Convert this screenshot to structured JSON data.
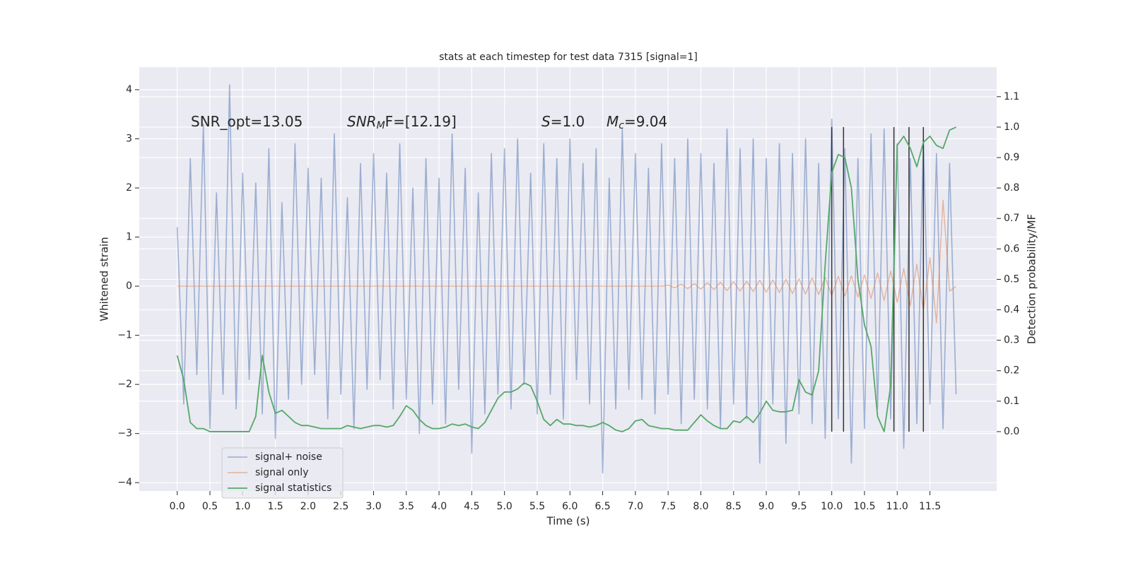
{
  "chart_data": {
    "type": "line",
    "title": "stats at each timestep for test data 7315 [signal=1]",
    "xlabel": "Time (s)",
    "ylabel": "Whitened strain",
    "y2label": "Detection probability/MF",
    "grid": true,
    "legend": "lower left",
    "xlim": [
      -0.58,
      12.52
    ],
    "ylim": [
      -4.17,
      4.46
    ],
    "y2lim": [
      -0.195,
      1.197
    ],
    "xticks": [
      {
        "value": 0,
        "label": "0.0"
      },
      0.5,
      {
        "value": 1,
        "label": "1.0"
      },
      1.5,
      {
        "value": 2,
        "label": "2.0"
      },
      2.5,
      {
        "value": 3,
        "label": "3.0"
      },
      3.5,
      {
        "value": 4,
        "label": "4.0"
      },
      4.5,
      {
        "value": 5,
        "label": "5.0"
      },
      5.5,
      {
        "value": 6,
        "label": "6.0"
      },
      6.5,
      {
        "value": 7,
        "label": "7.0"
      },
      7.5,
      {
        "value": 8,
        "label": "8.0"
      },
      8.5,
      {
        "value": 9,
        "label": "9.0"
      },
      9.5,
      {
        "value": 10,
        "label": "10.0"
      },
      10.5,
      {
        "value": 11,
        "label": "11.0"
      },
      11.5
    ],
    "yticks": [
      {
        "value": -4,
        "label": "−4"
      },
      {
        "value": -3,
        "label": "−3"
      },
      {
        "value": -2,
        "label": "−2"
      },
      {
        "value": -1,
        "label": "−1"
      },
      0,
      1,
      2,
      3,
      4
    ],
    "y2ticks": [
      {
        "value": 0,
        "label": "0.0"
      },
      0.1,
      0.2,
      0.3,
      0.4,
      0.5,
      0.6,
      0.7,
      0.8,
      0.9,
      {
        "value": 1,
        "label": "1.0"
      },
      1.1
    ],
    "annotations": [
      {
        "base": "SNR_opt=13.05",
        "italic": false
      },
      {
        "base": "SNR",
        "sub": "M",
        "rest": "F=[12.19]",
        "italic": true
      },
      {
        "base": "S",
        "rest": "=1.0",
        "italic": true
      },
      {
        "base": "M",
        "sub": "c",
        "rest": "=9.04",
        "italic": true
      }
    ],
    "vlines": {
      "x": [
        10.0,
        10.18,
        10.95,
        11.18,
        11.4
      ],
      "y2range": [
        0,
        1.0
      ],
      "color": "#333333"
    },
    "x": [
      0,
      0.1,
      0.2,
      0.3,
      0.4,
      0.5,
      0.6,
      0.7,
      0.8,
      0.9,
      1,
      1.1,
      1.2,
      1.3,
      1.4,
      1.5,
      1.6,
      1.7,
      1.8,
      1.9,
      2,
      2.1,
      2.2,
      2.3,
      2.4,
      2.5,
      2.6,
      2.7,
      2.8,
      2.9,
      3,
      3.1,
      3.2,
      3.3,
      3.4,
      3.5,
      3.6,
      3.7,
      3.8,
      3.9,
      4,
      4.1,
      4.2,
      4.3,
      4.4,
      4.5,
      4.6,
      4.7,
      4.8,
      4.9,
      5,
      5.1,
      5.2,
      5.3,
      5.4,
      5.5,
      5.6,
      5.7,
      5.8,
      5.9,
      6,
      6.1,
      6.2,
      6.3,
      6.4,
      6.5,
      6.6,
      6.7,
      6.8,
      6.9,
      7,
      7.1,
      7.2,
      7.3,
      7.4,
      7.5,
      7.6,
      7.7,
      7.8,
      7.9,
      8,
      8.1,
      8.2,
      8.3,
      8.4,
      8.5,
      8.6,
      8.7,
      8.8,
      8.9,
      9,
      9.1,
      9.2,
      9.3,
      9.4,
      9.5,
      9.6,
      9.7,
      9.8,
      9.9,
      10,
      10.1,
      10.2,
      10.3,
      10.4,
      10.5,
      10.6,
      10.7,
      10.8,
      10.9,
      11,
      11.1,
      11.2,
      11.3,
      11.4,
      11.5,
      11.6,
      11.7,
      11.8,
      11.9
    ],
    "series": [
      {
        "name": "signal+ noise",
        "color": "#4c72b0",
        "values": [
          1.2,
          -2.4,
          2.6,
          -1.8,
          3.3,
          -2.9,
          1.9,
          -2.2,
          4.1,
          -2.5,
          2.3,
          -1.9,
          2.1,
          -2.6,
          2.8,
          -3.1,
          1.7,
          -2.3,
          2.9,
          -2.0,
          2.4,
          -1.8,
          2.2,
          -2.7,
          3.1,
          -2.2,
          1.8,
          -2.9,
          2.5,
          -2.1,
          2.7,
          -1.9,
          2.3,
          -2.5,
          2.9,
          -2.3,
          2.0,
          -3.0,
          2.6,
          -2.4,
          2.2,
          -2.8,
          3.1,
          -2.1,
          2.4,
          -3.4,
          1.9,
          -2.6,
          2.7,
          -2.2,
          2.8,
          -2.5,
          3.0,
          -2.0,
          2.3,
          -2.6,
          2.9,
          -2.2,
          2.6,
          -2.7,
          3.0,
          -1.9,
          2.5,
          -2.4,
          2.8,
          -3.8,
          2.2,
          -2.5,
          3.2,
          -2.1,
          2.7,
          -2.3,
          2.4,
          -2.6,
          2.9,
          -2.2,
          2.6,
          -2.8,
          3.0,
          -2.3,
          2.7,
          -2.5,
          2.5,
          -2.9,
          3.2,
          -2.4,
          2.8,
          -2.7,
          3.0,
          -3.6,
          2.6,
          -2.4,
          2.9,
          -3.2,
          2.7,
          -2.6,
          3.0,
          -2.8,
          2.5,
          -3.1,
          3.4,
          -2.7,
          2.8,
          -3.6,
          2.6,
          -2.9,
          3.1,
          -2.5,
          3.2,
          -2.7,
          2.9,
          -3.3,
          2.6,
          -2.8,
          3.0,
          -2.4,
          2.7,
          -2.9,
          2.5,
          -2.2
        ]
      },
      {
        "name": "signal only",
        "color": "#dd8452",
        "values": [
          0,
          0,
          0,
          0,
          0,
          0,
          0,
          0,
          0,
          0,
          0,
          0,
          0,
          0,
          0,
          0,
          0,
          0,
          0,
          0,
          0,
          0,
          0,
          0,
          0,
          0,
          0,
          0,
          0,
          0,
          0,
          0,
          0,
          0,
          0,
          0,
          0,
          0,
          0,
          0,
          0,
          0,
          0,
          0,
          0,
          0,
          0,
          0,
          0,
          0,
          0,
          0,
          0,
          0,
          0,
          0,
          0,
          0,
          0,
          0,
          0,
          0,
          0,
          0,
          0,
          0,
          0,
          0,
          0,
          0,
          0,
          0,
          0,
          0,
          0,
          0.02,
          -0.03,
          0.04,
          -0.05,
          0.05,
          -0.06,
          0.07,
          -0.07,
          0.08,
          -0.09,
          0.09,
          -0.1,
          0.1,
          -0.11,
          0.12,
          -0.12,
          0.13,
          -0.13,
          0.14,
          -0.15,
          0.15,
          -0.16,
          0.17,
          -0.17,
          0.18,
          -0.19,
          0.2,
          -0.2,
          0.21,
          -0.22,
          0.23,
          -0.25,
          0.27,
          -0.29,
          0.31,
          -0.33,
          0.36,
          -0.4,
          0.45,
          -0.5,
          0.58,
          -0.75,
          1.75,
          -0.1,
          0.0
        ]
      },
      {
        "name": "signal statistics",
        "color": "#55a868",
        "axis": "y2",
        "values": [
          0.25,
          0.17,
          0.03,
          0.01,
          0.01,
          0.0,
          0.0,
          0.0,
          0.0,
          0.0,
          0.0,
          0.0,
          0.05,
          0.25,
          0.13,
          0.06,
          0.07,
          0.05,
          0.03,
          0.02,
          0.02,
          0.015,
          0.01,
          0.01,
          0.01,
          0.01,
          0.02,
          0.015,
          0.01,
          0.015,
          0.02,
          0.02,
          0.015,
          0.02,
          0.05,
          0.085,
          0.07,
          0.04,
          0.02,
          0.01,
          0.01,
          0.015,
          0.025,
          0.02,
          0.025,
          0.015,
          0.01,
          0.03,
          0.07,
          0.11,
          0.13,
          0.13,
          0.14,
          0.16,
          0.15,
          0.1,
          0.04,
          0.02,
          0.04,
          0.025,
          0.025,
          0.02,
          0.02,
          0.015,
          0.02,
          0.03,
          0.02,
          0.005,
          0.0,
          0.01,
          0.035,
          0.04,
          0.02,
          0.015,
          0.01,
          0.01,
          0.005,
          0.005,
          0.005,
          0.03,
          0.055,
          0.035,
          0.02,
          0.01,
          0.01,
          0.035,
          0.03,
          0.05,
          0.03,
          0.06,
          0.1,
          0.07,
          0.065,
          0.065,
          0.07,
          0.17,
          0.13,
          0.12,
          0.2,
          0.55,
          0.85,
          0.91,
          0.9,
          0.8,
          0.5,
          0.35,
          0.28,
          0.05,
          0.0,
          0.15,
          0.94,
          0.97,
          0.93,
          0.87,
          0.95,
          0.97,
          0.94,
          0.93,
          0.99,
          1.0
        ]
      }
    ]
  }
}
